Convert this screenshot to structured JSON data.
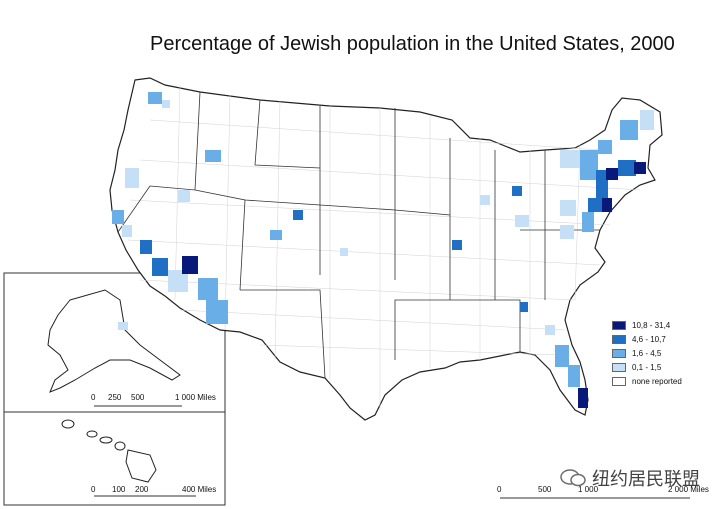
{
  "title": "Percentage of Jewish population in the United States, 2000",
  "legend": {
    "items": [
      {
        "label": "10,8 - 31,4",
        "color": "#08197a"
      },
      {
        "label": "4,6 - 10,7",
        "color": "#1f6fc4"
      },
      {
        "label": "1,6 - 4,5",
        "color": "#6aaee8"
      },
      {
        "label": "0,1 - 1,5",
        "color": "#c5e0f6"
      },
      {
        "label": "none reported",
        "color": "#ffffff"
      }
    ]
  },
  "scales": {
    "alaska": {
      "ticks": [
        "0",
        "250",
        "500",
        "1 000 Miles"
      ]
    },
    "hawaii": {
      "ticks": [
        "0",
        "100",
        "200",
        "400 Miles"
      ]
    },
    "mainland": {
      "ticks": [
        "0",
        "500",
        "1 000",
        "2 000 Miles"
      ]
    }
  },
  "watermark": {
    "text": "纽约居民联盟",
    "icon": "chat-bubble-icon"
  },
  "colors": {
    "border": "#222222",
    "county": "#bbbbbb"
  }
}
